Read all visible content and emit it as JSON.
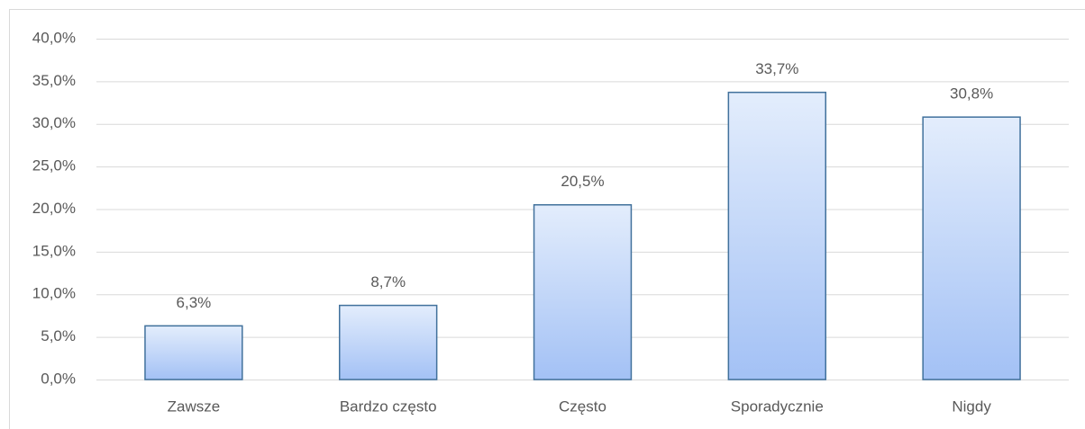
{
  "chart_data": {
    "type": "bar",
    "categories": [
      "Zawsze",
      "Bardzo często",
      "Często",
      "Sporadycznie",
      "Nigdy"
    ],
    "values": [
      6.3,
      8.7,
      20.5,
      33.7,
      30.8
    ],
    "value_labels": [
      "6,3%",
      "8,7%",
      "20,5%",
      "33,7%",
      "30,8%"
    ],
    "color": "#a3c1f5",
    "ylim": [
      0,
      40
    ],
    "yticks": [
      {
        "value": 0,
        "label": "0,0%"
      },
      {
        "value": 5,
        "label": "5,0%"
      },
      {
        "value": 10,
        "label": "10,0%"
      },
      {
        "value": 15,
        "label": "15,0%"
      },
      {
        "value": 20,
        "label": "20,0%"
      },
      {
        "value": 25,
        "label": "25,0%"
      },
      {
        "value": 30,
        "label": "30,0%"
      },
      {
        "value": 35,
        "label": "35,0%"
      },
      {
        "value": 40,
        "label": "40,0%"
      }
    ],
    "grid": true
  }
}
